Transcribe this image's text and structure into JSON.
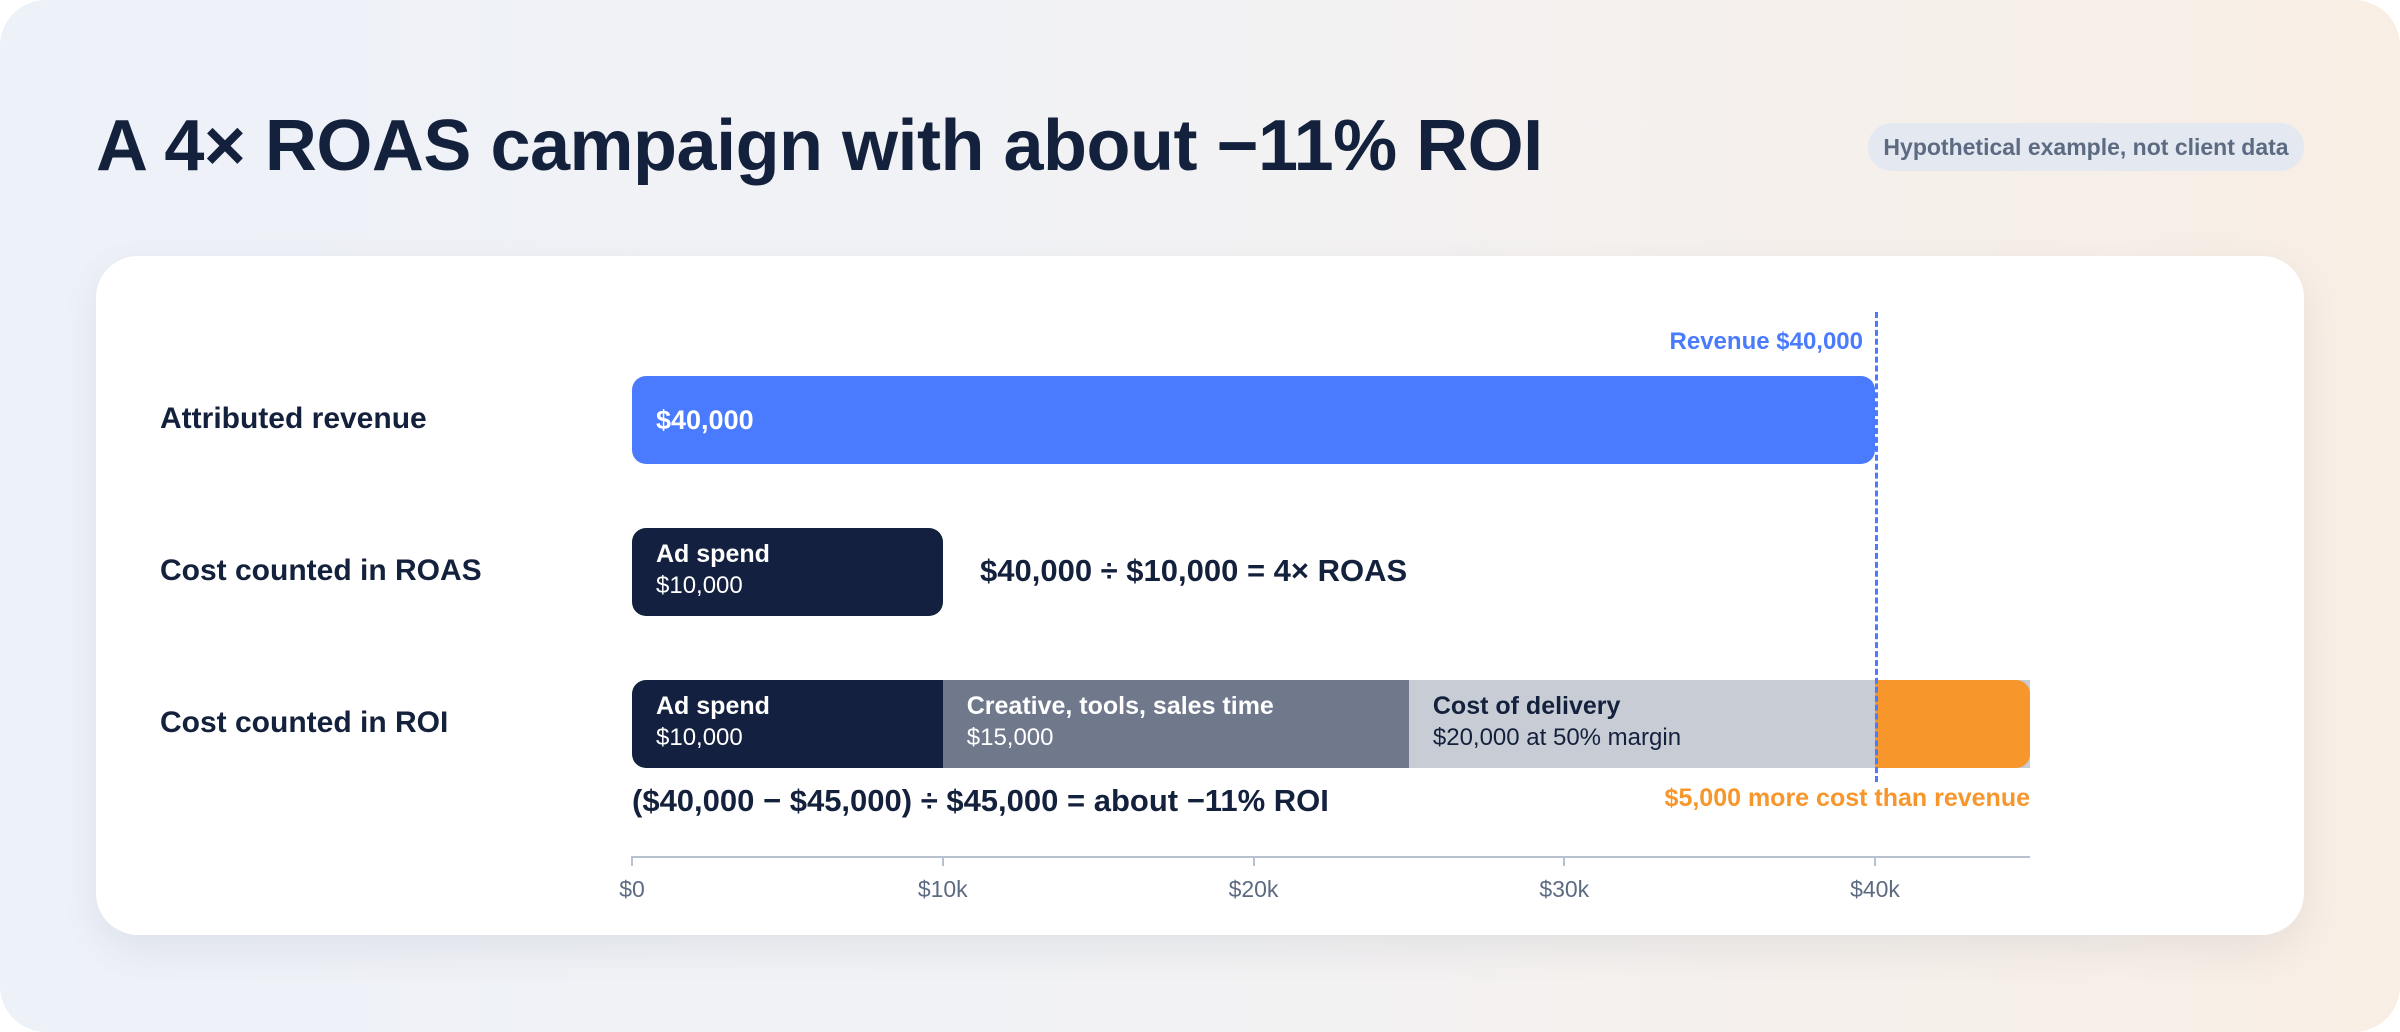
{
  "title": "A 4× ROAS campaign with about −11% ROI",
  "badge": "Hypothetical example, not client data",
  "colors": {
    "revenue": "#4a7bff",
    "ad_spend": "#13203f",
    "creative": "#6f798b",
    "delivery": "#c8ccd5",
    "gap": "#f7962b"
  },
  "chart_data": {
    "type": "bar",
    "orientation": "horizontal-stacked",
    "xlim": [
      0,
      45000
    ],
    "x_ticks": [
      "$0",
      "$10k",
      "$20k",
      "$30k",
      "$40k"
    ],
    "x_tick_values": [
      0,
      10000,
      20000,
      30000,
      40000
    ],
    "reference_line": {
      "value": 40000,
      "label": "Revenue $40,000"
    },
    "rows": [
      {
        "label": "Attributed revenue",
        "segments": [
          {
            "name": "",
            "value": 40000,
            "text": "$40,000",
            "color": "#4a7bff",
            "text_color": "#ffffff"
          }
        ]
      },
      {
        "label": "Cost counted in ROAS",
        "segments": [
          {
            "name": "Ad spend",
            "value": 10000,
            "text": "$10,000",
            "color": "#13203f",
            "text_color": "#ffffff"
          }
        ],
        "annotation": "$40,000 ÷ $10,000 = 4× ROAS"
      },
      {
        "label": "Cost counted in ROI",
        "segments": [
          {
            "name": "Ad spend",
            "value": 10000,
            "text": "$10,000",
            "color": "#13203f",
            "text_color": "#ffffff"
          },
          {
            "name": "Creative, tools, sales time",
            "value": 15000,
            "text": "$15,000",
            "color": "#6f798b",
            "text_color": "#ffffff"
          },
          {
            "name": "Cost of delivery",
            "value": 20000,
            "text": "$20,000 at 50% margin",
            "color": "#c8ccd5",
            "text_color": "#14213d"
          }
        ],
        "annotation": "($40,000 − $45,000) ÷ $45,000 = about −11% ROI",
        "overshoot": {
          "value": 5000,
          "label": "$5,000 more cost than revenue",
          "color": "#f7962b"
        }
      }
    ]
  }
}
